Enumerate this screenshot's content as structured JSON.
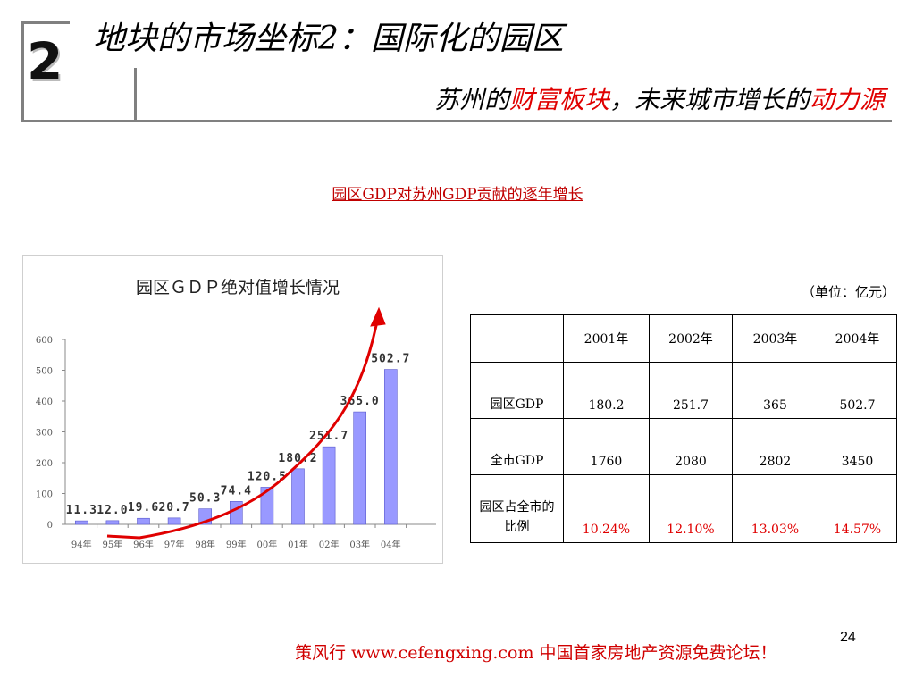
{
  "header": {
    "section_number": "2",
    "title": "地块的市场坐标2：国际化的园区",
    "subtitle_parts": [
      "苏州的",
      "财富板块",
      "，未来城市增长的",
      "动力源"
    ]
  },
  "caption": "园区GDP对苏州GDP贡献的逐年增长",
  "chart_data": {
    "type": "bar",
    "title": "园区ＧＤＰ绝对值增长情况",
    "categories": [
      "94年",
      "95年",
      "96年",
      "97年",
      "98年",
      "99年",
      "00年",
      "01年",
      "02年",
      "03年",
      "04年"
    ],
    "values": [
      11.3,
      12.0,
      19.6,
      20.7,
      50.3,
      74.4,
      120.5,
      180.2,
      251.7,
      365.0,
      502.7
    ],
    "data_labels": [
      "11.3",
      "12.0",
      "19.6",
      "20.7",
      "50.3",
      "74.4",
      "120.5",
      "180.2",
      "251.7",
      "365.0",
      "502.7"
    ],
    "ylim": [
      0,
      600
    ],
    "yticks": [
      "0",
      "100",
      "200",
      "300",
      "400",
      "500",
      "600"
    ],
    "bar_color": "#9999ff",
    "trend_arrow_color": "#e00000",
    "grid": false
  },
  "table": {
    "unit": "（单位：亿元）",
    "headers": [
      "",
      "2001年",
      "2002年",
      "2003年",
      "2004年"
    ],
    "rows": [
      {
        "label": "园区GDP",
        "values": [
          "180.2",
          "251.7",
          "365",
          "502.7"
        ]
      },
      {
        "label": "全市GDP",
        "values": [
          "1760",
          "2080",
          "2802",
          "3450"
        ]
      },
      {
        "label": "园区占全市的比例",
        "values": [
          "10.24%",
          "12.10%",
          "13.03%",
          "14.57%"
        ]
      }
    ]
  },
  "footer": "策风行 www.cefengxing.com 中国首家房地产资源免费论坛！",
  "page_number": "24"
}
